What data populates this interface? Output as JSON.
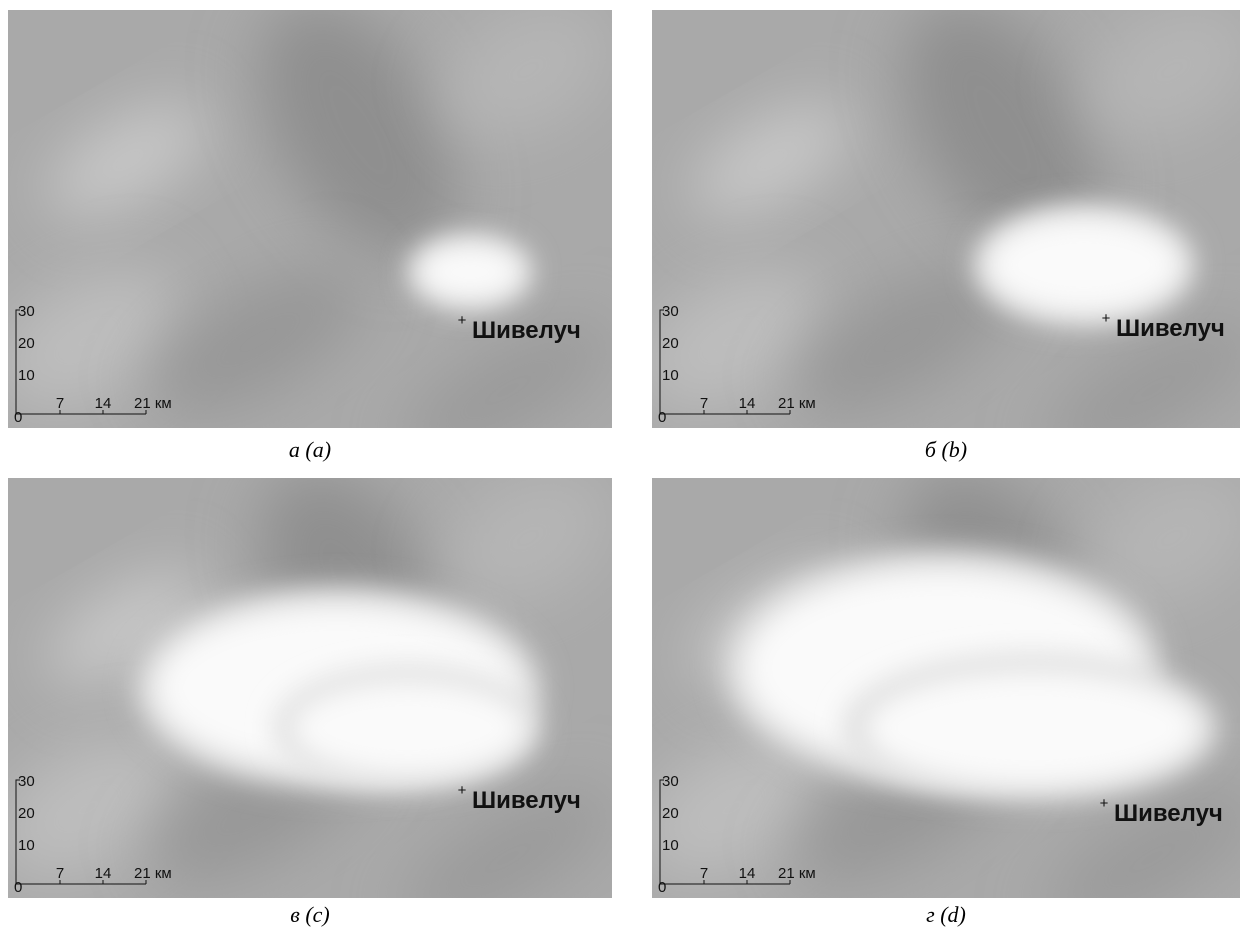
{
  "panels": [
    {
      "caption": "а (a)",
      "volcano": "Шивелуч",
      "scale": {
        "origin": "0",
        "y": [
          "30",
          "20",
          "10"
        ],
        "x": [
          "7",
          "14",
          "21 км"
        ]
      }
    },
    {
      "caption": "б (b)",
      "volcano": "Шивелуч",
      "scale": {
        "origin": "0",
        "y": [
          "30",
          "20",
          "10"
        ],
        "x": [
          "7",
          "14",
          "21 км"
        ]
      }
    },
    {
      "caption": "в (c)",
      "volcano": "Шивелуч",
      "scale": {
        "origin": "0",
        "y": [
          "30",
          "20",
          "10"
        ],
        "x": [
          "7",
          "14",
          "21 км"
        ]
      }
    },
    {
      "caption": "г (d)",
      "volcano": "Шивелуч",
      "scale": {
        "origin": "0",
        "y": [
          "30",
          "20",
          "10"
        ],
        "x": [
          "7",
          "14",
          "21 км"
        ]
      }
    }
  ]
}
